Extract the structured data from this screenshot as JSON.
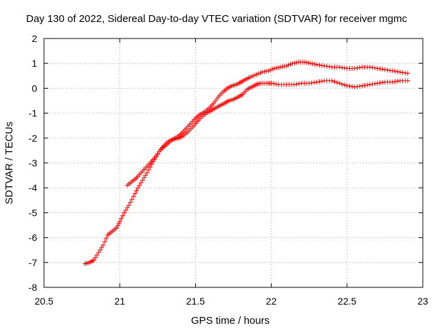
{
  "chart_data": {
    "type": "scatter",
    "title": "Day 130 of 2022, Sidereal Day-to-day VTEC variation (SDTVAR) for receiver mgmc",
    "xlabel": "GPS time / hours",
    "ylabel": "SDTVAR / TECUs",
    "xlim": [
      20.5,
      23
    ],
    "ylim": [
      -8,
      2
    ],
    "xticks": [
      "20.5",
      "21",
      "21.5",
      "22",
      "22.5",
      "23"
    ],
    "yticks": [
      "-8",
      "-7",
      "-6",
      "-5",
      "-4",
      "-3",
      "-2",
      "-1",
      "0",
      "1",
      "2"
    ],
    "grid": true,
    "marker": "plus",
    "color": "#ff0000",
    "series": [
      {
        "points": [
          [
            20.77,
            -7.05
          ],
          [
            20.8,
            -7.0
          ],
          [
            20.83,
            -6.9
          ],
          [
            20.86,
            -6.6
          ],
          [
            20.89,
            -6.3
          ],
          [
            20.92,
            -5.9
          ],
          [
            20.95,
            -5.75
          ],
          [
            20.98,
            -5.6
          ],
          [
            21.0,
            -5.35
          ],
          [
            21.03,
            -5.0
          ],
          [
            21.06,
            -4.7
          ],
          [
            21.09,
            -4.35
          ],
          [
            21.12,
            -4.0
          ],
          [
            21.15,
            -3.7
          ],
          [
            21.18,
            -3.4
          ],
          [
            21.21,
            -3.05
          ],
          [
            21.24,
            -2.75
          ],
          [
            21.27,
            -2.45
          ],
          [
            21.3,
            -2.25
          ],
          [
            21.33,
            -2.1
          ],
          [
            21.36,
            -2.05
          ],
          [
            21.39,
            -2.0
          ],
          [
            21.42,
            -1.9
          ],
          [
            21.45,
            -1.75
          ],
          [
            21.48,
            -1.55
          ],
          [
            21.51,
            -1.35
          ],
          [
            21.54,
            -1.15
          ],
          [
            21.57,
            -1.0
          ],
          [
            21.6,
            -0.9
          ],
          [
            21.63,
            -0.8
          ],
          [
            21.66,
            -0.7
          ],
          [
            21.69,
            -0.6
          ],
          [
            21.72,
            -0.5
          ],
          [
            21.75,
            -0.45
          ],
          [
            21.78,
            -0.35
          ],
          [
            21.81,
            -0.25
          ],
          [
            21.84,
            -0.05
          ],
          [
            21.87,
            0.05
          ],
          [
            21.9,
            0.15
          ],
          [
            21.93,
            0.2
          ],
          [
            21.97,
            0.2
          ],
          [
            22.0,
            0.2
          ],
          [
            22.05,
            0.15
          ],
          [
            22.1,
            0.15
          ],
          [
            22.15,
            0.15
          ],
          [
            22.2,
            0.2
          ],
          [
            22.25,
            0.2
          ],
          [
            22.3,
            0.25
          ],
          [
            22.35,
            0.3
          ],
          [
            22.4,
            0.3
          ],
          [
            22.45,
            0.2
          ],
          [
            22.5,
            0.1
          ],
          [
            22.55,
            0.05
          ],
          [
            22.6,
            0.1
          ],
          [
            22.65,
            0.15
          ],
          [
            22.7,
            0.2
          ],
          [
            22.75,
            0.25
          ],
          [
            22.8,
            0.25
          ],
          [
            22.85,
            0.3
          ],
          [
            22.9,
            0.3
          ]
        ]
      },
      {
        "points": [
          [
            21.05,
            -3.9
          ],
          [
            21.08,
            -3.75
          ],
          [
            21.11,
            -3.6
          ],
          [
            21.14,
            -3.4
          ],
          [
            21.17,
            -3.2
          ],
          [
            21.2,
            -3.0
          ],
          [
            21.23,
            -2.8
          ],
          [
            21.26,
            -2.55
          ],
          [
            21.29,
            -2.35
          ],
          [
            21.32,
            -2.2
          ],
          [
            21.35,
            -2.05
          ],
          [
            21.38,
            -1.95
          ],
          [
            21.41,
            -1.8
          ],
          [
            21.44,
            -1.6
          ],
          [
            21.47,
            -1.4
          ],
          [
            21.5,
            -1.2
          ],
          [
            21.53,
            -1.05
          ],
          [
            21.56,
            -0.95
          ],
          [
            21.59,
            -0.8
          ],
          [
            21.62,
            -0.6
          ],
          [
            21.65,
            -0.35
          ],
          [
            21.68,
            -0.15
          ],
          [
            21.71,
            0.0
          ],
          [
            21.74,
            0.1
          ],
          [
            21.77,
            0.15
          ],
          [
            21.8,
            0.25
          ],
          [
            21.83,
            0.35
          ],
          [
            21.86,
            0.45
          ],
          [
            21.9,
            0.55
          ],
          [
            21.94,
            0.65
          ],
          [
            21.98,
            0.7
          ],
          [
            22.02,
            0.8
          ],
          [
            22.06,
            0.85
          ],
          [
            22.1,
            0.9
          ],
          [
            22.14,
            1.0
          ],
          [
            22.18,
            1.05
          ],
          [
            22.22,
            1.05
          ],
          [
            22.26,
            1.0
          ],
          [
            22.3,
            0.95
          ],
          [
            22.35,
            0.9
          ],
          [
            22.4,
            0.85
          ],
          [
            22.45,
            0.85
          ],
          [
            22.5,
            0.8
          ],
          [
            22.55,
            0.8
          ],
          [
            22.6,
            0.85
          ],
          [
            22.65,
            0.85
          ],
          [
            22.7,
            0.8
          ],
          [
            22.75,
            0.75
          ],
          [
            22.8,
            0.7
          ],
          [
            22.85,
            0.65
          ],
          [
            22.9,
            0.6
          ]
        ]
      }
    ]
  }
}
